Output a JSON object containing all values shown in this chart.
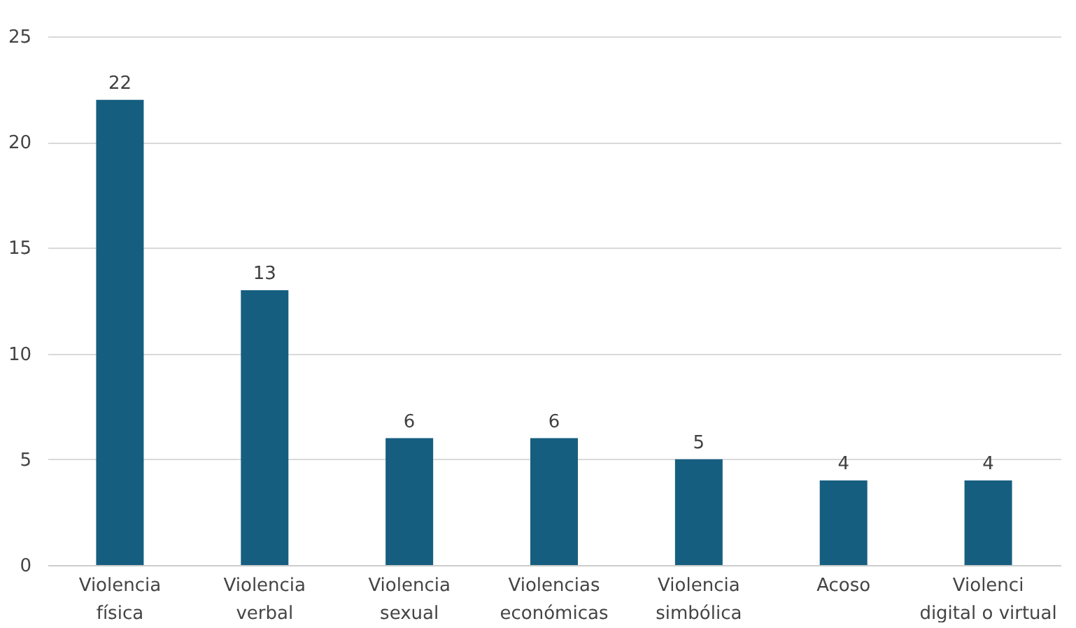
{
  "chart_data": {
    "type": "bar",
    "categories": [
      "Violencia física",
      "Violencia verbal",
      "Violencia sexual",
      "Violencias económicas",
      "Violencia simbólica",
      "Acoso",
      "Violenci digital o virtual"
    ],
    "values": [
      22,
      13,
      6,
      6,
      5,
      4,
      4
    ],
    "color": "#165e80",
    "ylim": [
      0,
      25
    ],
    "yticks": [
      0,
      5,
      10,
      15,
      20,
      25
    ],
    "grid": "y",
    "data_labels": true
  }
}
